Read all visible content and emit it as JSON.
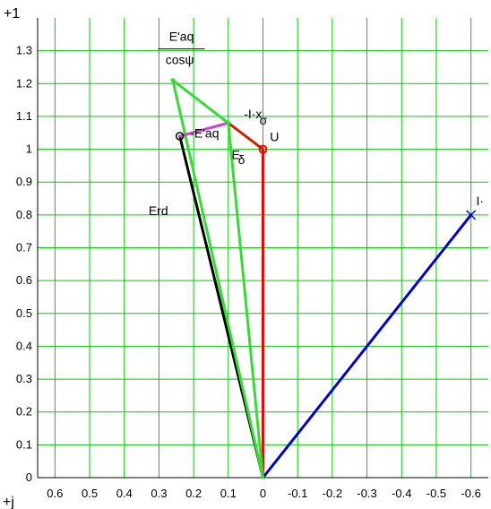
{
  "chart_data": {
    "type": "phasor",
    "x_axis_label": "+j",
    "y_axis_label": "+1",
    "xlim": [
      0.65,
      -0.65
    ],
    "ylim": [
      0,
      1.4
    ],
    "x_ticks": [
      0.6,
      0.5,
      0.4,
      0.3,
      0.2,
      0.1,
      0,
      -0.1,
      -0.2,
      -0.3,
      -0.4,
      -0.5,
      -0.6
    ],
    "x_tick_labels": [
      "0.6",
      "0.5",
      "0.4",
      "0.3",
      "0.2",
      "0.1",
      "0",
      "-0.1",
      "-0.2",
      "-0.3",
      "-0.4",
      "-0.5",
      "-0.6"
    ],
    "y_ticks": [
      0,
      0.1,
      0.2,
      0.3,
      0.4,
      0.5,
      0.6,
      0.7,
      0.8,
      0.9,
      1,
      1.1,
      1.2,
      1.3
    ],
    "y_tick_labels": [
      "0",
      "0.1",
      "0.2",
      "0.3",
      "0.4",
      "0.5",
      "0.6",
      "0.7",
      "0.8",
      "0.9",
      "1",
      "1.1",
      "1.2",
      "1.3"
    ],
    "grid": true,
    "grid_color": "#00cc00",
    "points": {
      "origin": [
        0,
        0
      ],
      "U": [
        0,
        1.0
      ],
      "E_delta": [
        0.1,
        1.08
      ],
      "Eaq_tip": [
        0.26,
        1.21
      ],
      "Erd": [
        0.24,
        1.04
      ],
      "I": [
        -0.6,
        0.8
      ]
    },
    "segments": [
      {
        "name": "U",
        "from": "origin",
        "to": "U",
        "color": "#ff0000"
      },
      {
        "name": "I",
        "from": "origin",
        "to": "I",
        "color": "#0000cc",
        "marker": "x"
      },
      {
        "name": "Erd",
        "from": "origin",
        "to": "Erd",
        "color": "#000000",
        "marker": "o"
      },
      {
        "name": "E_delta",
        "from": "origin",
        "to": "E_delta",
        "color": "#33dd33"
      },
      {
        "name": "-I·xσ",
        "from": "U",
        "to": "E_delta",
        "color": "#cc2200"
      },
      {
        "name": "E'aq/cosψ",
        "from": "E_delta",
        "to": "Eaq_tip",
        "color": "#33dd33"
      },
      {
        "name": "E'aq",
        "from": "Eaq_tip",
        "to": "origin",
        "color": "#33dd33"
      },
      {
        "name": "-E'aq",
        "from": "E_delta",
        "to": "Erd",
        "color": "#cc44cc"
      }
    ],
    "labels": [
      {
        "text": "E'aq",
        "at": [
          0.235,
          1.33
        ],
        "role": "frac-num"
      },
      {
        "text": "cosψ",
        "at": [
          0.24,
          1.26
        ],
        "role": "frac-den"
      },
      {
        "text": "-I·x",
        "at": [
          0.055,
          1.095
        ]
      },
      {
        "text": "σ",
        "at": [
          0.01,
          1.075
        ],
        "role": "sub"
      },
      {
        "text": "U",
        "at": [
          -0.02,
          1.025
        ]
      },
      {
        "text": "-E'aq",
        "at": [
          0.21,
          1.035
        ]
      },
      {
        "text": "E",
        "at": [
          0.09,
          0.97
        ]
      },
      {
        "text": "δ",
        "at": [
          0.072,
          0.955
        ],
        "role": "sub"
      },
      {
        "text": "Erd",
        "at": [
          0.33,
          0.8
        ]
      },
      {
        "text": "I·",
        "at": [
          -0.615,
          0.83
        ]
      }
    ]
  }
}
